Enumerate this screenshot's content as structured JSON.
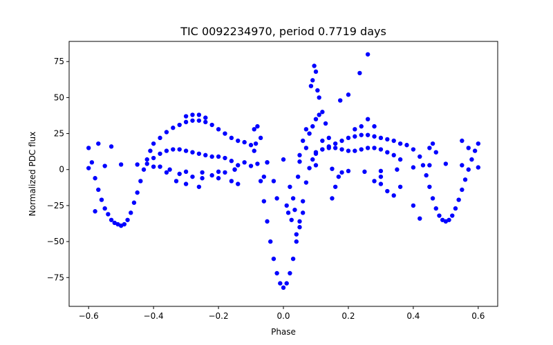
{
  "chart_data": {
    "type": "scatter",
    "title": "TIC 0092234970, period 0.7719 days",
    "xlabel": "Phase",
    "ylabel": "Normalized PDC flux",
    "xlim": [
      -0.66,
      0.66
    ],
    "ylim": [
      -95,
      89
    ],
    "xticks": [
      -0.6,
      -0.4,
      -0.2,
      0.0,
      0.2,
      0.4,
      0.6
    ],
    "xtick_labels": [
      "−0.6",
      "−0.4",
      "−0.2",
      "0.0",
      "0.2",
      "0.4",
      "0.6"
    ],
    "yticks": [
      -75,
      -50,
      -25,
      0,
      25,
      50,
      75
    ],
    "ytick_labels": [
      "−75",
      "−50",
      "−25",
      "0",
      "25",
      "50",
      "75"
    ],
    "grid": false,
    "marker_color": "#0000ff",
    "series": [
      {
        "style": "main-light-curve",
        "points": [
          [
            -0.6,
            15
          ],
          [
            -0.59,
            5
          ],
          [
            -0.58,
            -6
          ],
          [
            -0.57,
            -14
          ],
          [
            -0.56,
            -21
          ],
          [
            -0.55,
            -27
          ],
          [
            -0.54,
            -31
          ],
          [
            -0.53,
            -35
          ],
          [
            -0.52,
            -37
          ],
          [
            -0.51,
            -38
          ],
          [
            -0.5,
            -39
          ],
          [
            -0.49,
            -38
          ],
          [
            -0.48,
            -35
          ],
          [
            -0.47,
            -30
          ],
          [
            -0.46,
            -23
          ],
          [
            -0.45,
            -16
          ],
          [
            -0.44,
            -8
          ],
          [
            -0.43,
            0
          ],
          [
            -0.42,
            7
          ],
          [
            -0.41,
            13
          ],
          [
            -0.4,
            18
          ],
          [
            -0.38,
            22
          ],
          [
            -0.36,
            26
          ],
          [
            -0.34,
            29
          ],
          [
            -0.32,
            31
          ],
          [
            -0.3,
            33
          ],
          [
            -0.28,
            34
          ],
          [
            -0.26,
            34
          ],
          [
            -0.24,
            33
          ],
          [
            -0.22,
            31
          ],
          [
            -0.2,
            28
          ],
          [
            -0.18,
            25
          ],
          [
            -0.16,
            22
          ],
          [
            -0.14,
            20
          ],
          [
            -0.12,
            19
          ],
          [
            -0.1,
            17
          ],
          [
            -0.09,
            13
          ],
          [
            -0.08,
            4
          ],
          [
            -0.07,
            -8
          ],
          [
            -0.06,
            -22
          ],
          [
            -0.05,
            -36
          ],
          [
            -0.04,
            -50
          ],
          [
            -0.03,
            -62
          ],
          [
            -0.02,
            -72
          ],
          [
            -0.01,
            -79
          ],
          [
            0.0,
            -82
          ],
          [
            0.01,
            -79
          ],
          [
            0.02,
            -72
          ],
          [
            0.03,
            -62
          ],
          [
            0.04,
            -50
          ],
          [
            0.05,
            -36
          ],
          [
            0.06,
            -22
          ],
          [
            0.07,
            -9
          ],
          [
            0.08,
            1
          ],
          [
            0.09,
            7
          ],
          [
            0.1,
            11
          ],
          [
            0.12,
            14
          ],
          [
            0.14,
            16
          ],
          [
            0.16,
            18
          ],
          [
            0.18,
            20
          ],
          [
            0.2,
            22
          ],
          [
            0.22,
            23
          ],
          [
            0.24,
            24
          ],
          [
            0.26,
            24
          ],
          [
            0.28,
            23
          ],
          [
            0.3,
            22
          ],
          [
            0.32,
            21
          ],
          [
            0.34,
            20
          ],
          [
            0.36,
            18
          ],
          [
            0.38,
            17
          ],
          [
            0.4,
            14
          ],
          [
            0.42,
            9
          ],
          [
            0.43,
            3
          ],
          [
            0.44,
            -4
          ],
          [
            0.45,
            -12
          ],
          [
            0.46,
            -20
          ],
          [
            0.47,
            -27
          ],
          [
            0.48,
            -32
          ],
          [
            0.49,
            -35
          ],
          [
            0.5,
            -36
          ],
          [
            0.51,
            -35
          ],
          [
            0.52,
            -32
          ],
          [
            0.53,
            -27
          ],
          [
            0.54,
            -21
          ],
          [
            0.55,
            -14
          ],
          [
            0.56,
            -7
          ],
          [
            0.57,
            0
          ],
          [
            0.58,
            7
          ],
          [
            0.59,
            13
          ],
          [
            0.6,
            18
          ]
        ]
      },
      {
        "style": "low-amplitude-curve",
        "points": [
          [
            -0.6,
            1
          ],
          [
            -0.55,
            2.5
          ],
          [
            -0.5,
            3.5
          ],
          [
            -0.45,
            3.5
          ],
          [
            -0.4,
            2
          ],
          [
            -0.35,
            0
          ],
          [
            -0.3,
            -1.5
          ],
          [
            -0.25,
            -2
          ],
          [
            -0.2,
            -1.5
          ],
          [
            -0.15,
            0
          ],
          [
            -0.1,
            2.5
          ],
          [
            -0.05,
            5
          ],
          [
            0.0,
            7
          ],
          [
            0.05,
            5.5
          ],
          [
            0.1,
            3
          ],
          [
            0.15,
            0.5
          ],
          [
            0.2,
            -1
          ],
          [
            0.25,
            -1.5
          ],
          [
            0.3,
            -1
          ],
          [
            0.35,
            0
          ],
          [
            0.4,
            1.5
          ],
          [
            0.45,
            3
          ],
          [
            0.5,
            4
          ],
          [
            0.55,
            3
          ],
          [
            0.6,
            1.5
          ]
        ]
      },
      {
        "style": "secondary-hump",
        "points": [
          [
            -0.42,
            4
          ],
          [
            -0.4,
            8
          ],
          [
            -0.38,
            11
          ],
          [
            -0.36,
            13
          ],
          [
            -0.34,
            14
          ],
          [
            -0.32,
            14
          ],
          [
            -0.3,
            13
          ],
          [
            -0.28,
            12
          ],
          [
            -0.26,
            11
          ],
          [
            -0.24,
            10
          ],
          [
            -0.22,
            9
          ],
          [
            -0.2,
            9
          ],
          [
            -0.18,
            8
          ],
          [
            -0.16,
            6
          ],
          [
            -0.14,
            3
          ],
          [
            0.1,
            12
          ],
          [
            0.12,
            14
          ],
          [
            0.14,
            15
          ],
          [
            0.16,
            15
          ],
          [
            0.18,
            14
          ],
          [
            0.2,
            13
          ],
          [
            0.22,
            13
          ],
          [
            0.24,
            14
          ],
          [
            0.26,
            15
          ],
          [
            0.28,
            15
          ],
          [
            0.3,
            14
          ],
          [
            0.32,
            12
          ],
          [
            0.34,
            10
          ],
          [
            0.36,
            7
          ]
        ]
      },
      {
        "style": "scattered-points",
        "points": [
          [
            0.085,
            58
          ],
          [
            0.09,
            62
          ],
          [
            0.095,
            72
          ],
          [
            0.1,
            68
          ],
          [
            0.105,
            55
          ],
          [
            0.11,
            50
          ],
          [
            0.12,
            40
          ],
          [
            0.13,
            32
          ],
          [
            0.14,
            22
          ],
          [
            0.12,
            20
          ],
          [
            0.175,
            48
          ],
          [
            0.2,
            52
          ],
          [
            0.235,
            67
          ],
          [
            0.26,
            80
          ],
          [
            0.05,
            -40
          ],
          [
            0.04,
            -45
          ],
          [
            0.06,
            -30
          ],
          [
            0.03,
            -20
          ],
          [
            0.02,
            -12
          ],
          [
            0.05,
            10
          ],
          [
            0.06,
            20
          ],
          [
            0.07,
            28
          ],
          [
            0.045,
            -5
          ],
          [
            0.035,
            -28
          ],
          [
            -0.03,
            -8
          ],
          [
            -0.02,
            -20
          ],
          [
            0.01,
            -25
          ],
          [
            0.015,
            -30
          ],
          [
            0.025,
            -35
          ],
          [
            -0.08,
            30
          ],
          [
            -0.09,
            28
          ],
          [
            -0.07,
            22
          ],
          [
            -0.085,
            18
          ],
          [
            -0.12,
            5
          ],
          [
            -0.15,
            0
          ],
          [
            -0.18,
            -2
          ],
          [
            -0.22,
            -4
          ],
          [
            -0.25,
            -6
          ],
          [
            -0.28,
            -5
          ],
          [
            -0.32,
            -3
          ],
          [
            -0.36,
            -2
          ],
          [
            -0.33,
            -8
          ],
          [
            -0.3,
            -10
          ],
          [
            -0.26,
            -12
          ],
          [
            -0.2,
            -6
          ],
          [
            -0.16,
            -8
          ],
          [
            -0.14,
            -10
          ],
          [
            -0.38,
            2
          ],
          [
            0.15,
            -20
          ],
          [
            0.16,
            -12
          ],
          [
            0.17,
            -5
          ],
          [
            0.18,
            -2
          ],
          [
            0.3,
            -5
          ],
          [
            0.3,
            -10
          ],
          [
            0.32,
            -15
          ],
          [
            0.34,
            -18
          ],
          [
            0.28,
            -8
          ],
          [
            0.36,
            -12
          ],
          [
            0.4,
            -25
          ],
          [
            0.42,
            -34
          ],
          [
            0.45,
            15
          ],
          [
            0.47,
            12
          ],
          [
            0.46,
            18
          ],
          [
            -0.58,
            -29
          ],
          [
            -0.53,
            16
          ],
          [
            -0.57,
            18
          ],
          [
            0.55,
            20
          ],
          [
            0.57,
            15
          ],
          [
            -0.05,
            5
          ],
          [
            -0.06,
            -5
          ],
          [
            0.07,
            15
          ],
          [
            0.08,
            25
          ],
          [
            0.09,
            30
          ],
          [
            0.1,
            35
          ],
          [
            0.11,
            38
          ],
          [
            0.24,
            30
          ],
          [
            0.26,
            35
          ],
          [
            0.28,
            30
          ],
          [
            0.22,
            28
          ],
          [
            -0.28,
            38
          ],
          [
            -0.26,
            38
          ],
          [
            -0.3,
            37
          ],
          [
            -0.24,
            36
          ]
        ]
      }
    ]
  }
}
